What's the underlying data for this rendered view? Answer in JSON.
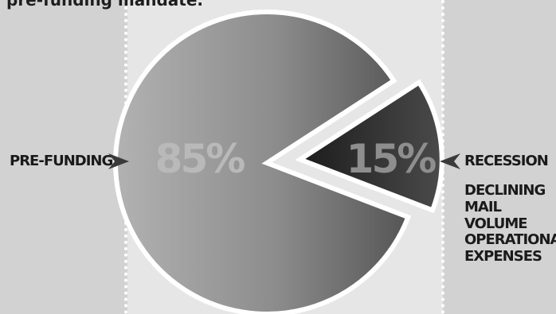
{
  "header": {
    "text": "pre-funding mandate."
  },
  "chart_data": {
    "type": "pie",
    "title": "",
    "slices": [
      {
        "label": "PRE-FUNDING",
        "value": 85,
        "display": "85%",
        "color": "#9e9e9e"
      },
      {
        "label": "RECESSION",
        "value": 15,
        "display": "15%",
        "color": "#3a3a3a"
      }
    ],
    "annotations": [
      "RECESSION",
      "DECLINING\nMAIL VOLUME",
      "OPERATIONAL\nEXPENSES"
    ]
  },
  "colors": {
    "background": "#d2d2d2",
    "panel": "#e6e6e6",
    "text": "#1a1a1a",
    "arrow": "#3a3a3a"
  }
}
